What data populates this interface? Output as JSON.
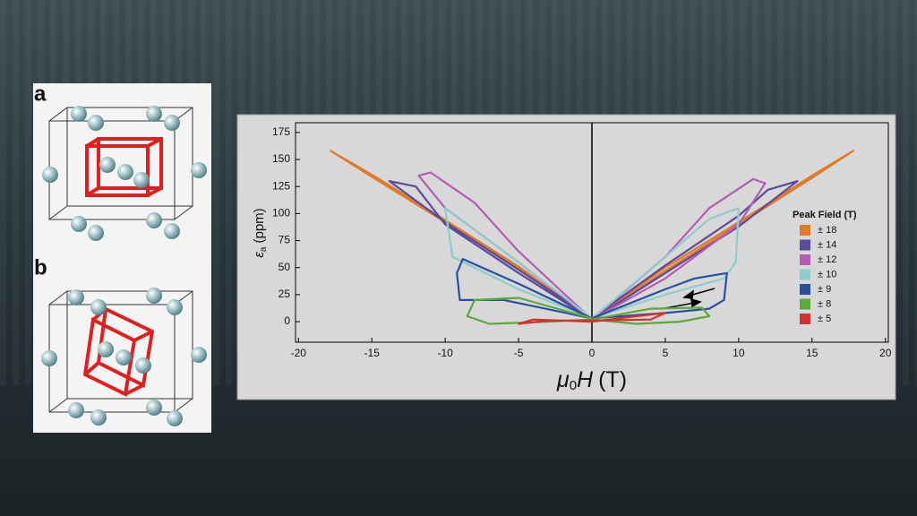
{
  "panel_labels": [
    "a",
    "b"
  ],
  "chart_data": {
    "type": "line",
    "x_label": {
      "symbol": "μ",
      "subscript": "0",
      "variable": "H",
      "unit": "(T)"
    },
    "y_label": {
      "symbol": "ε",
      "subscript": "a",
      "unit": "(ppm)"
    },
    "legend_title": "Peak Field (T)",
    "legend": "right",
    "xlim": [
      -20.2,
      20.2
    ],
    "xticks": [
      -20,
      -15,
      -10,
      -5,
      0,
      5,
      10,
      15,
      20
    ],
    "ylim": [
      -19,
      184
    ],
    "yticks": [
      0,
      25,
      50,
      75,
      100,
      125,
      150,
      175
    ],
    "series": [
      {
        "name": "± 18",
        "color": "#e07b2a",
        "x": [
          0,
          5,
          10,
          15,
          17.8,
          15,
          10,
          5,
          0,
          -5,
          -10,
          -15,
          -17.8,
          -15,
          -10,
          -5,
          0
        ],
        "values": [
          2,
          47,
          90,
          133,
          158,
          135,
          92,
          50,
          3,
          49,
          92,
          134,
          158,
          136,
          94,
          51,
          2
        ]
      },
      {
        "name": "± 14",
        "color": "#5b4b9b",
        "x": [
          0,
          5,
          10,
          14,
          12,
          10,
          5,
          0,
          -5,
          -10,
          -13.8,
          -12,
          -10,
          -5,
          0
        ],
        "values": [
          2,
          45,
          88,
          130,
          122,
          98,
          52,
          3,
          48,
          92,
          130,
          125,
          90,
          45,
          2
        ]
      },
      {
        "name": "± 12",
        "color": "#b35db3",
        "x": [
          0,
          5,
          10,
          11.8,
          11,
          8,
          5,
          0,
          -5,
          -10,
          -11.8,
          -11,
          -8,
          -5,
          0
        ],
        "values": [
          2,
          40,
          90,
          128,
          132,
          105,
          60,
          2,
          55,
          105,
          135,
          138,
          110,
          65,
          2
        ]
      },
      {
        "name": "± 10",
        "color": "#8fcccc",
        "x": [
          0,
          5,
          9,
          9.8,
          10,
          8,
          5,
          0,
          -5,
          -9,
          -10,
          -9.5,
          -8,
          -5,
          0
        ],
        "values": [
          3,
          25,
          40,
          55,
          105,
          95,
          60,
          3,
          55,
          95,
          105,
          60,
          50,
          30,
          3
        ]
      },
      {
        "name": "± 9",
        "color": "#2b4f9e",
        "x": [
          0,
          5,
          8,
          9,
          9.2,
          7,
          5,
          0,
          -5,
          -8.8,
          -9.2,
          -9,
          -6,
          0
        ],
        "values": [
          3,
          8,
          12,
          20,
          45,
          40,
          30,
          3,
          35,
          58,
          45,
          20,
          20,
          3
        ]
      },
      {
        "name": "± 8",
        "color": "#5aab3b",
        "x": [
          0,
          4,
          7.5,
          8,
          6,
          3,
          0,
          -3,
          -7,
          -8.5,
          -8,
          -5,
          0
        ],
        "values": [
          2,
          12,
          13,
          5,
          0,
          -2,
          2,
          0,
          -2,
          5,
          20,
          22,
          3
        ]
      },
      {
        "name": "± 5",
        "color": "#d33232",
        "x": [
          0,
          3,
          5,
          4,
          0,
          -3,
          -5,
          -4,
          0
        ],
        "values": [
          0,
          5,
          8,
          2,
          1,
          1,
          -2,
          2,
          0
        ]
      }
    ]
  }
}
